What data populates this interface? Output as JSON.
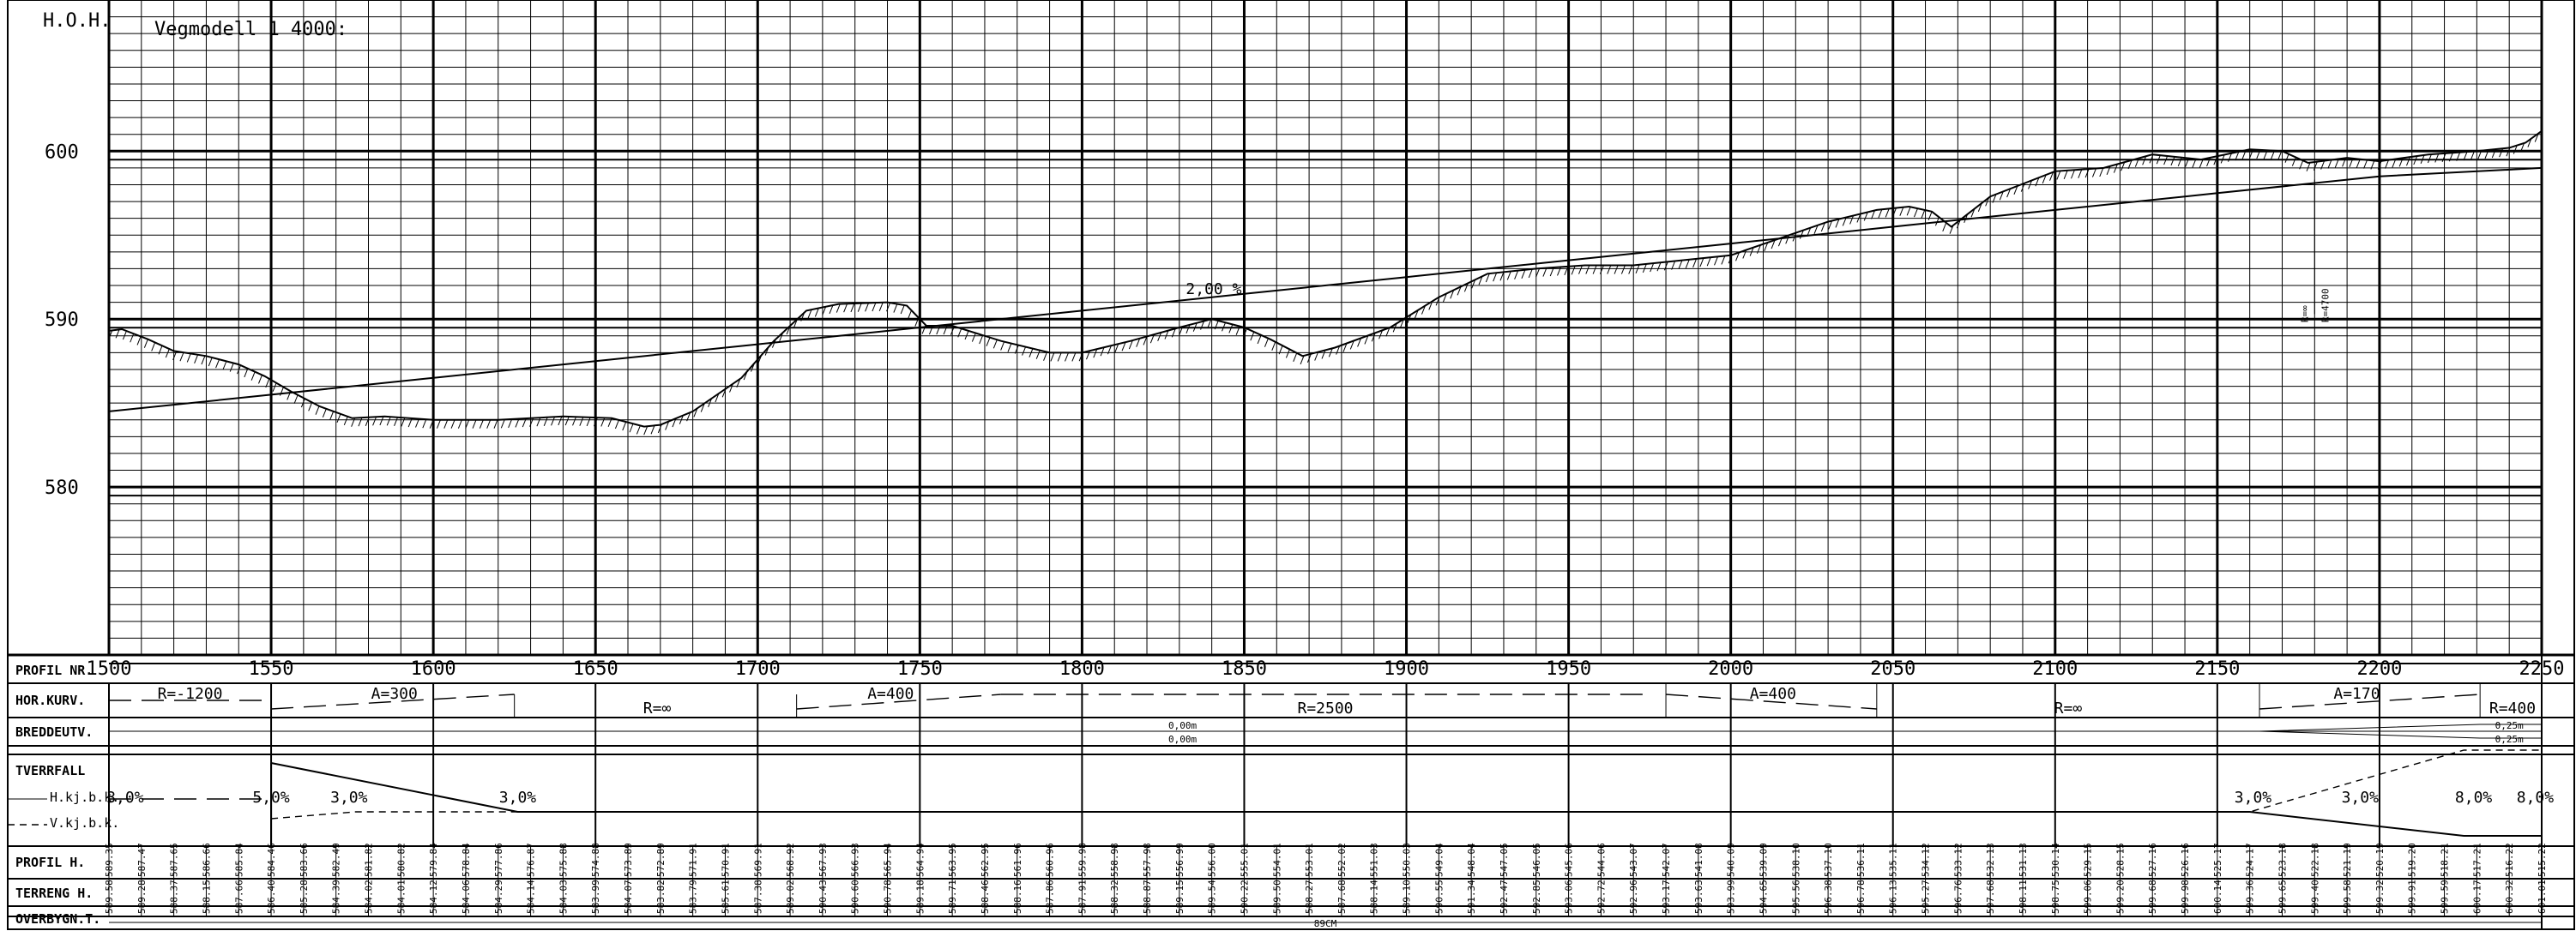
{
  "title": "Vegmodell 1 4000:",
  "axis": {
    "y_label": "H.O.H.",
    "y_ticks": [
      600,
      590,
      580
    ],
    "y_range": [
      570,
      609
    ],
    "x_range": [
      1500,
      2250
    ]
  },
  "chart_data": {
    "type": "line",
    "title": "Vegmodell 1 4000:",
    "ylabel": "H.O.H.",
    "xlabel": "PROFIL NR.",
    "x_ticks": [
      1500,
      1550,
      1600,
      1650,
      1700,
      1750,
      1800,
      1850,
      1900,
      1950,
      2000,
      2050,
      2100,
      2150,
      2200,
      2250
    ],
    "xlim": [
      1500,
      2250
    ],
    "ylim": [
      570,
      609
    ],
    "grid": true,
    "grade_label": "2,00 %",
    "series": [
      {
        "x": [
          1500,
          1550,
          1600,
          1650,
          1700,
          1750,
          1800,
          1850,
          1900,
          1950,
          2000,
          2050,
          2100,
          2150,
          2200,
          2250
        ],
        "y": [
          584.5,
          585.5,
          586.5,
          587.5,
          588.5,
          589.5,
          590.5,
          591.5,
          592.5,
          593.5,
          594.5,
          595.5,
          596.5,
          597.5,
          598.5,
          599.0
        ]
      },
      {
        "x": [
          1500,
          1504,
          1512,
          1520,
          1530,
          1540,
          1548,
          1556,
          1565,
          1575,
          1585,
          1600,
          1620,
          1640,
          1655,
          1665,
          1670,
          1680,
          1695,
          1705,
          1715,
          1725,
          1740,
          1746,
          1752,
          1760,
          1775,
          1790,
          1800,
          1815,
          1830,
          1840,
          1850,
          1858,
          1868,
          1878,
          1895,
          1910,
          1925,
          1940,
          1955,
          1970,
          1985,
          2000,
          2015,
          2030,
          2045,
          2055,
          2062,
          2068,
          2080,
          2100,
          2115,
          2130,
          2145,
          2160,
          2170,
          2178,
          2190,
          2200,
          2215,
          2230,
          2240,
          2245,
          2250
        ],
        "y": [
          589.3,
          589.4,
          588.8,
          588.1,
          587.8,
          587.3,
          586.6,
          585.7,
          584.8,
          584.1,
          584.2,
          584.0,
          584.0,
          584.2,
          584.1,
          583.6,
          583.7,
          584.5,
          586.5,
          588.7,
          590.5,
          590.9,
          591.0,
          590.8,
          589.6,
          589.6,
          588.7,
          588.0,
          588.0,
          588.7,
          589.5,
          590.0,
          589.5,
          588.8,
          587.8,
          588.3,
          589.5,
          591.3,
          592.7,
          593.0,
          593.2,
          593.2,
          593.5,
          593.8,
          594.8,
          595.8,
          596.5,
          596.7,
          596.4,
          595.5,
          597.3,
          598.8,
          599.0,
          599.8,
          599.5,
          600.1,
          600.0,
          599.3,
          599.6,
          599.4,
          599.8,
          600.0,
          600.2,
          600.5,
          601.2
        ]
      }
    ],
    "curve_annotation": {
      "x": 2180,
      "label1": "R=∞",
      "label2": "R=4700"
    }
  },
  "band": {
    "labels": {
      "profil_nr": "PROFIL NR.",
      "hor_kurv": "HOR.KURV.",
      "breddeutv": "BREDDEUTV.",
      "tverrfall": "TVERRFALL",
      "h_kj": "H.kj.b.k.",
      "v_kj": "V.kj.b.k.",
      "profil_h": "PROFIL H.",
      "terreng_h": "TERRENG H.",
      "overbygn": "OVERBYGN.T."
    },
    "profile_numbers": [
      "1500",
      "1550",
      "1600",
      "1650",
      "1700",
      "1750",
      "1800",
      "1850",
      "1900",
      "1950",
      "2000",
      "2050",
      "2100",
      "2150",
      "2200",
      "2250"
    ],
    "hor_kurv": [
      {
        "x": 1525,
        "text": "R=-1200"
      },
      {
        "x": 1588,
        "text": "A=300"
      },
      {
        "x": 1669,
        "text": "R=∞"
      },
      {
        "x": 1741,
        "text": "A=400"
      },
      {
        "x": 1875,
        "text": "R=2500"
      },
      {
        "x": 2013,
        "text": "A=400"
      },
      {
        "x": 2104,
        "text": "R=∞"
      },
      {
        "x": 2193,
        "text": "A=170"
      },
      {
        "x": 2241,
        "text": "R=400"
      }
    ],
    "breddeutv": [
      {
        "x": 1831,
        "text": "0,00m",
        "row": 0
      },
      {
        "x": 1831,
        "text": "0,00m",
        "row": 1
      },
      {
        "x": 2240,
        "text": "0,25m",
        "row": 0
      },
      {
        "x": 2240,
        "text": "0,25m",
        "row": 1
      }
    ],
    "tverrfall": [
      {
        "x": 1505,
        "text": "3,0%"
      },
      {
        "x": 1550,
        "text": "5,0%"
      },
      {
        "x": 1574,
        "text": "3,0%"
      },
      {
        "x": 1626,
        "text": "3,0%"
      },
      {
        "x": 2161,
        "text": "3,0%"
      },
      {
        "x": 2194,
        "text": "3,0%"
      },
      {
        "x": 2229,
        "text": "8,0%"
      },
      {
        "x": 2248,
        "text": "8,0%"
      }
    ],
    "profil_h": [
      "589.35",
      "587.47",
      "587.65",
      "586.66",
      "585.84",
      "584.46",
      "583.66",
      "582.49",
      "581.82",
      "580.82",
      "579.84",
      "578.84",
      "577.86",
      "576.87",
      "575.88",
      "574.88",
      "573.89",
      "572.89",
      "571.91",
      "570.91",
      "569.91",
      "568.92",
      "567.93",
      "566.93",
      "565.94",
      "564.94",
      "563.95",
      "562.95",
      "561.96",
      "560.96",
      "559.98",
      "558.98",
      "557.98",
      "556.99",
      "556.00",
      "555.01",
      "554.01",
      "553.01",
      "552.02",
      "551.03",
      "550.03",
      "549.04",
      "548.04",
      "547.05",
      "546.05",
      "545.06",
      "544.06",
      "543.07",
      "542.07",
      "541.08",
      "540.09",
      "539.09",
      "538.10",
      "537.10",
      "536.11",
      "535.11",
      "534.12",
      "533.12",
      "532.13",
      "531.13",
      "530.14",
      "529.15",
      "528.15",
      "527.16",
      "526.16",
      "525.17",
      "524.17",
      "523.18",
      "522.18",
      "521.19",
      "520.19",
      "519.20",
      "518.21",
      "517.21",
      "516.22",
      "515.22"
    ],
    "terreng_h": [
      "589.58",
      "589.28",
      "588.37",
      "588.15",
      "587.66",
      "586.40",
      "585.28",
      "584.39",
      "584.02",
      "584.01",
      "584.12",
      "584.06",
      "584.29",
      "584.14",
      "584.03",
      "583.99",
      "584.07",
      "583.82",
      "583.79",
      "585.61",
      "587.38",
      "589.02",
      "590.43",
      "590.60",
      "590.78",
      "589.18",
      "589.71",
      "588.46",
      "588.16",
      "587.86",
      "587.91",
      "588.32",
      "588.87",
      "589.15",
      "589.54",
      "590.22",
      "589.50",
      "588.27",
      "587.68",
      "588.14",
      "589.10",
      "590.55",
      "591.34",
      "592.47",
      "592.85",
      "593.06",
      "592.72",
      "592.96",
      "593.17",
      "593.63",
      "593.99",
      "594.65",
      "595.56",
      "596.38",
      "596.78",
      "596.13",
      "595.27",
      "596.76",
      "597.68",
      "598.11",
      "598.75",
      "599.06",
      "599.20",
      "599.68",
      "599.98",
      "600.14",
      "599.36",
      "599.65",
      "599.40",
      "599.58",
      "599.32",
      "599.91",
      "599.59",
      "600.17",
      "600.32",
      "601.01"
    ],
    "overbygn_text": "89CM"
  }
}
